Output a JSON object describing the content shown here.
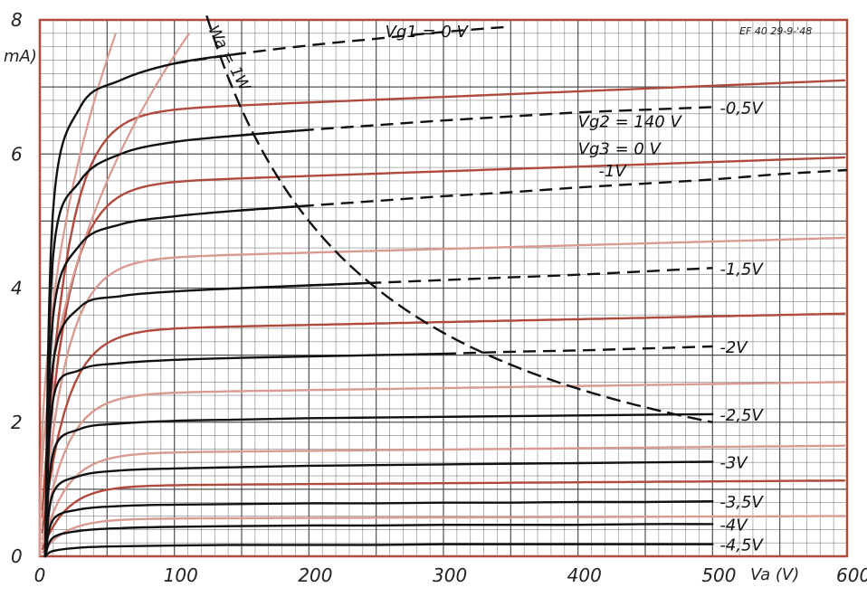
{
  "chart_data": {
    "type": "line",
    "xlabel": "Va (V)",
    "ylabel": "mA)",
    "xlim": [
      0,
      600
    ],
    "ylim": [
      0,
      8
    ],
    "x_ticks": [
      "0",
      "100",
      "200",
      "300",
      "400",
      "500",
      "600"
    ],
    "y_ticks": [
      "0",
      "2",
      "4",
      "6",
      "8"
    ],
    "grid": true,
    "header_note": "EF 40 29-9-'48",
    "conditions": [
      "Vg2 = 140 V",
      "Vg3 = 0 V"
    ],
    "dissipation_label": "Wa = 1W",
    "series": [
      {
        "name": "Vg1 = 0 V",
        "label": "Vg1 = 0 V",
        "x": [
          10,
          30,
          60,
          100,
          150,
          200,
          250,
          300,
          350
        ],
        "y": [
          5.2,
          6.7,
          7.1,
          7.35,
          7.5,
          7.62,
          7.72,
          7.82,
          7.9
        ],
        "dashed_from": 150
      },
      {
        "name": "-0,5 V",
        "label": "-0,5V",
        "x": [
          10,
          30,
          60,
          100,
          150,
          200,
          250,
          300,
          350,
          400,
          450,
          500
        ],
        "y": [
          4.5,
          5.6,
          6.0,
          6.18,
          6.28,
          6.36,
          6.43,
          6.5,
          6.56,
          6.62,
          6.66,
          6.7
        ],
        "dashed_from": 200
      },
      {
        "name": "-1 V",
        "label": "-1V",
        "x": [
          10,
          30,
          60,
          100,
          150,
          200,
          250,
          300,
          350,
          400,
          450,
          500,
          550,
          600
        ],
        "y": [
          3.6,
          4.65,
          4.95,
          5.07,
          5.16,
          5.23,
          5.3,
          5.37,
          5.43,
          5.5,
          5.56,
          5.62,
          5.7,
          5.76
        ],
        "dashed_from": 200
      },
      {
        "name": "-1,5 V",
        "label": "-1,5V",
        "x": [
          10,
          30,
          60,
          100,
          150,
          200,
          250,
          300,
          350,
          400,
          450,
          500
        ],
        "y": [
          2.9,
          3.72,
          3.88,
          3.95,
          4.0,
          4.04,
          4.08,
          4.12,
          4.16,
          4.2,
          4.25,
          4.3
        ],
        "dashed_from": 250
      },
      {
        "name": "-2 V",
        "label": "-2V",
        "x": [
          10,
          30,
          60,
          100,
          150,
          200,
          250,
          300,
          350,
          400,
          450,
          500
        ],
        "y": [
          2.35,
          2.78,
          2.88,
          2.93,
          2.96,
          2.98,
          3.0,
          3.02,
          3.05,
          3.07,
          3.1,
          3.13
        ],
        "dashed_from": 330
      },
      {
        "name": "-2,5 V",
        "label": "-2,5V",
        "x": [
          10,
          30,
          60,
          100,
          150,
          200,
          250,
          300,
          350,
          400,
          450,
          500
        ],
        "y": [
          1.55,
          1.9,
          1.98,
          2.02,
          2.04,
          2.06,
          2.07,
          2.08,
          2.09,
          2.1,
          2.11,
          2.12
        ]
      },
      {
        "name": "-3 V",
        "label": "-3V",
        "x": [
          10,
          30,
          60,
          100,
          150,
          200,
          250,
          300,
          350,
          400,
          450,
          500
        ],
        "y": [
          0.95,
          1.2,
          1.28,
          1.31,
          1.33,
          1.35,
          1.36,
          1.37,
          1.38,
          1.39,
          1.4,
          1.41
        ]
      },
      {
        "name": "-3,5 V",
        "label": "-3,5V",
        "x": [
          10,
          30,
          60,
          100,
          150,
          200,
          250,
          300,
          350,
          400,
          450,
          500
        ],
        "y": [
          0.55,
          0.7,
          0.75,
          0.77,
          0.78,
          0.79,
          0.79,
          0.8,
          0.8,
          0.81,
          0.81,
          0.82
        ]
      },
      {
        "name": "-4 V",
        "label": "-4V",
        "x": [
          10,
          30,
          60,
          100,
          150,
          200,
          250,
          300,
          350,
          400,
          450,
          500
        ],
        "y": [
          0.28,
          0.38,
          0.42,
          0.44,
          0.45,
          0.46,
          0.46,
          0.47,
          0.47,
          0.47,
          0.48,
          0.48
        ]
      },
      {
        "name": "-4,5 V",
        "label": "-4,5V",
        "x": [
          10,
          30,
          60,
          100,
          150,
          200,
          250,
          300,
          350,
          400,
          450,
          500
        ],
        "y": [
          0.08,
          0.13,
          0.15,
          0.16,
          0.17,
          0.17,
          0.17,
          0.18,
          0.18,
          0.18,
          0.18,
          0.18
        ]
      }
    ],
    "reference_curves": {
      "color": "#b04a3c",
      "light_color": "#d99a92",
      "dark_color": "#2a2a2a",
      "levels": [
        {
          "y_end": 7.1,
          "steep": 0.9,
          "tone": "dark"
        },
        {
          "y_end": 5.95,
          "steep": 0.9,
          "tone": "dark"
        },
        {
          "y_end": 4.75,
          "steep": 0.9,
          "tone": "light"
        },
        {
          "y_end": 3.62,
          "steep": 0.9,
          "tone": "dark"
        },
        {
          "y_end": 2.6,
          "steep": 0.9,
          "tone": "light"
        },
        {
          "y_end": 1.65,
          "steep": 0.9,
          "tone": "light"
        },
        {
          "y_end": 1.13,
          "steep": 0.9,
          "tone": "dark"
        },
        {
          "y_end": 0.6,
          "steep": 0.9,
          "tone": "light"
        }
      ],
      "steep_curves": [
        {
          "x_top": 118,
          "tone": "light"
        },
        {
          "x_top": 60,
          "tone": "light"
        }
      ]
    },
    "power_curve": {
      "name": "Wa = 1W",
      "watts": 1,
      "x_from": 120,
      "x_to": 500
    },
    "colors": {
      "grid": "#333333",
      "curve": "#111111",
      "reference": "#b04a3c",
      "border": "#b04a3c"
    }
  }
}
